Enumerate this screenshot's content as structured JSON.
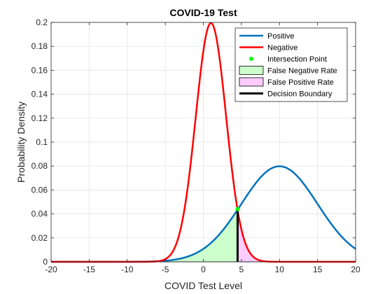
{
  "chart_data": {
    "type": "line",
    "title": "COVID-19 Test",
    "xlabel": "COVID Test Level",
    "ylabel": "Probability Density",
    "xlim": [
      -20,
      20
    ],
    "ylim": [
      0,
      0.2
    ],
    "x_ticks": [
      -20,
      -15,
      -10,
      -5,
      0,
      5,
      10,
      15,
      20
    ],
    "y_ticks": [
      0,
      0.02,
      0.04,
      0.06,
      0.08,
      0.1,
      0.12,
      0.14,
      0.16,
      0.18,
      0.2
    ],
    "x_tick_labels": [
      "-20",
      "-15",
      "-10",
      "-5",
      "0",
      "5",
      "10",
      "15",
      "20"
    ],
    "y_tick_labels": [
      "0",
      "0.02",
      "0.04",
      "0.06",
      "0.08",
      "0.1",
      "0.12",
      "0.14",
      "0.16",
      "0.18",
      "0.2"
    ],
    "grid": true,
    "legend_position": "top-right",
    "series": [
      {
        "name": "Positive",
        "distribution": "normal",
        "mean": 10,
        "std": 5,
        "color": "#0072BD"
      },
      {
        "name": "Negative",
        "distribution": "normal",
        "mean": 1,
        "std": 2,
        "color": "#FF0000"
      }
    ],
    "intersection_point": {
      "name": "Intersection Point",
      "x": 4.5,
      "y": 0.044,
      "color": "#00FF00"
    },
    "false_negative_rate": {
      "name": "False Negative Rate",
      "x_range": [
        -20,
        4.5
      ],
      "fill": "#CCFFCC"
    },
    "false_positive_rate": {
      "name": "False Positive Rate",
      "x_range": [
        4.5,
        20
      ],
      "fill": "#FFCCFF"
    },
    "decision_boundary": {
      "name": "Decision Boundary",
      "x": 4.5,
      "color": "#000000"
    },
    "legend_entries": [
      {
        "label": "Positive",
        "kind": "line",
        "color": "#0072BD"
      },
      {
        "label": "Negative",
        "kind": "line",
        "color": "#FF0000"
      },
      {
        "label": "Intersection Point",
        "kind": "marker",
        "color": "#00FF00"
      },
      {
        "label": "False Negative Rate",
        "kind": "patch",
        "color": "#CCFFCC"
      },
      {
        "label": "False Positive Rate",
        "kind": "patch",
        "color": "#FFCCFF"
      },
      {
        "label": "Decision Boundary",
        "kind": "line",
        "color": "#000000"
      }
    ]
  }
}
